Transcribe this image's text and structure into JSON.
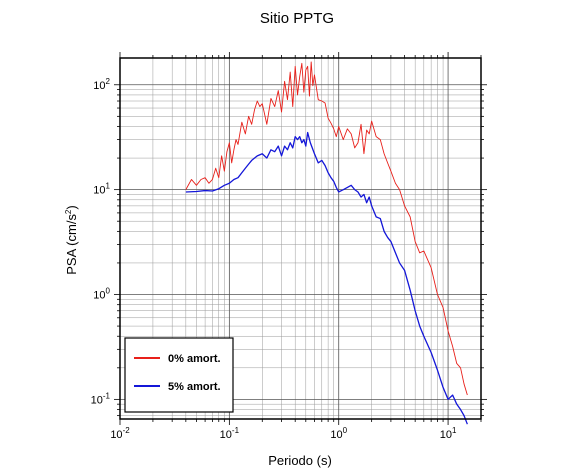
{
  "chart_data": {
    "type": "line",
    "title": "Sitio PPTG",
    "xlabel": "Periodo (s)",
    "ylabel_main": "PSA (cm/s",
    "ylabel_exp": "2",
    "ylabel_tail": ")",
    "xscale": "log",
    "yscale": "log",
    "xlim": [
      0.01,
      20
    ],
    "ylim": [
      0.065,
      180
    ],
    "grid": true,
    "legend_position": "bottom-left",
    "xticks": [
      {
        "value": 0.01,
        "base": "10",
        "exp": "-2"
      },
      {
        "value": 0.1,
        "base": "10",
        "exp": "-1"
      },
      {
        "value": 1,
        "base": "10",
        "exp": "0"
      },
      {
        "value": 10,
        "base": "10",
        "exp": "1"
      }
    ],
    "yticks": [
      {
        "value": 0.1,
        "base": "10",
        "exp": "-1"
      },
      {
        "value": 1,
        "base": "10",
        "exp": "0"
      },
      {
        "value": 10,
        "base": "10",
        "exp": "1"
      },
      {
        "value": 100,
        "base": "10",
        "exp": "2"
      }
    ],
    "series": [
      {
        "name": "0% amort.",
        "color": "#e8201a",
        "x": [
          0.04,
          0.045,
          0.05,
          0.055,
          0.06,
          0.065,
          0.07,
          0.075,
          0.08,
          0.085,
          0.09,
          0.095,
          0.1,
          0.105,
          0.11,
          0.115,
          0.12,
          0.13,
          0.14,
          0.15,
          0.16,
          0.17,
          0.18,
          0.19,
          0.2,
          0.22,
          0.24,
          0.26,
          0.28,
          0.3,
          0.32,
          0.34,
          0.36,
          0.38,
          0.4,
          0.42,
          0.44,
          0.46,
          0.48,
          0.5,
          0.52,
          0.54,
          0.56,
          0.58,
          0.6,
          0.65,
          0.7,
          0.75,
          0.8,
          0.85,
          0.9,
          0.95,
          1.0,
          1.1,
          1.2,
          1.3,
          1.4,
          1.5,
          1.6,
          1.7,
          1.8,
          1.9,
          2.0,
          2.2,
          2.4,
          2.6,
          2.8,
          3.0,
          3.3,
          3.6,
          4.0,
          4.5,
          5.0,
          5.5,
          6.0,
          7.0,
          8.0,
          9.0,
          10.0,
          11.0,
          12.0,
          13.0,
          14.0,
          15.0
        ],
        "y": [
          10,
          12.5,
          11,
          12.5,
          13,
          11.5,
          12.5,
          16,
          13,
          21,
          15,
          23,
          28,
          18,
          24,
          30,
          27,
          44,
          34,
          50,
          42,
          58,
          70,
          62,
          66,
          42,
          74,
          62,
          88,
          55,
          108,
          72,
          132,
          62,
          150,
          80,
          120,
          160,
          85,
          138,
          150,
          78,
          165,
          98,
          124,
          72,
          70,
          67,
          48,
          43,
          38,
          32,
          40,
          30,
          38,
          34,
          25,
          28,
          42,
          22,
          37,
          34,
          45,
          32,
          30,
          22,
          18,
          15,
          11.5,
          10,
          7,
          5.5,
          3.2,
          2.5,
          2.6,
          1.8,
          1.0,
          0.75,
          0.45,
          0.32,
          0.22,
          0.2,
          0.14,
          0.11
        ]
      },
      {
        "name": "5% amort.",
        "color": "#1417d8",
        "x": [
          0.04,
          0.05,
          0.06,
          0.07,
          0.08,
          0.09,
          0.1,
          0.11,
          0.12,
          0.13,
          0.14,
          0.15,
          0.16,
          0.18,
          0.2,
          0.22,
          0.24,
          0.26,
          0.28,
          0.3,
          0.32,
          0.34,
          0.36,
          0.38,
          0.4,
          0.42,
          0.44,
          0.46,
          0.48,
          0.5,
          0.52,
          0.55,
          0.6,
          0.65,
          0.7,
          0.75,
          0.8,
          0.85,
          0.9,
          0.95,
          1.0,
          1.1,
          1.2,
          1.3,
          1.4,
          1.5,
          1.6,
          1.7,
          1.8,
          1.9,
          2.0,
          2.2,
          2.4,
          2.6,
          2.8,
          3.0,
          3.3,
          3.6,
          4.0,
          4.5,
          5.0,
          5.5,
          6.0,
          7.0,
          8.0,
          9.0,
          10.0,
          11.0,
          12.0,
          13.0,
          14.0,
          15.0
        ],
        "y": [
          9.5,
          9.6,
          9.8,
          9.7,
          10.2,
          11,
          11.5,
          12.5,
          13,
          14.5,
          16,
          17.5,
          19,
          21,
          22,
          20,
          24,
          23,
          26,
          21,
          26,
          24,
          28,
          25,
          32,
          30,
          32,
          28,
          30,
          26,
          35,
          28,
          22,
          18,
          19,
          17,
          14.5,
          13,
          12,
          10.5,
          9.5,
          10,
          10.5,
          11,
          10,
          9.5,
          8.5,
          9,
          7.5,
          8.5,
          7,
          5.5,
          5.3,
          4,
          3.5,
          3.2,
          2.5,
          2.0,
          1.7,
          1.1,
          0.7,
          0.5,
          0.4,
          0.28,
          0.19,
          0.13,
          0.1,
          0.11,
          0.09,
          0.08,
          0.07,
          0.058
        ]
      }
    ]
  }
}
